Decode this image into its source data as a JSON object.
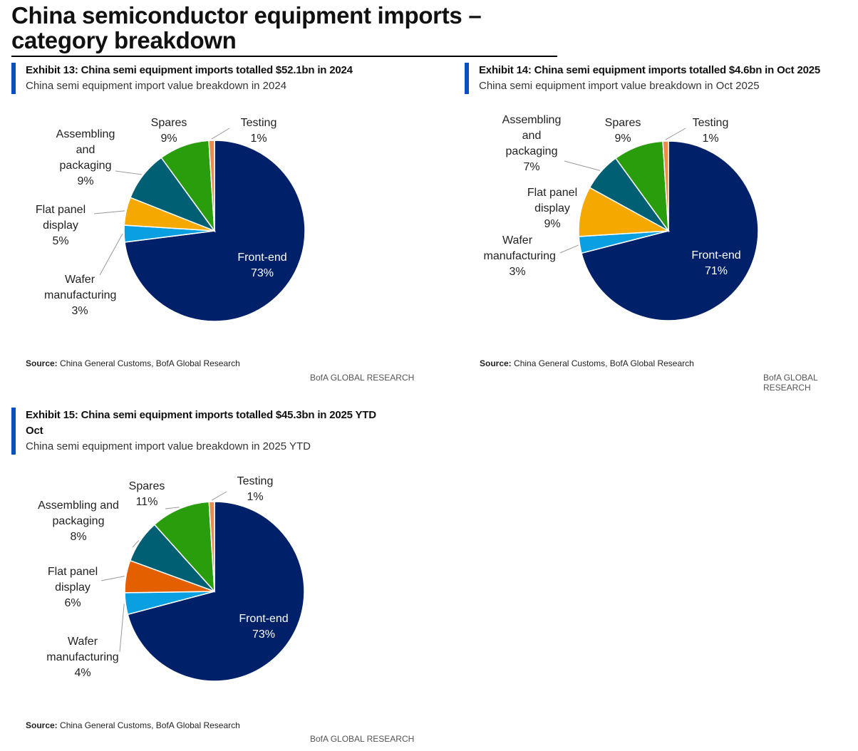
{
  "title": "China semiconductor equipment imports – category breakdown",
  "chart_data": [
    {
      "type": "pie",
      "title": "Exhibit 13: China semi equipment imports totalled $52.1bn in 2024",
      "subtitle": "China semi equipment import value breakdown in 2024",
      "categories": [
        "Front-end",
        "Wafer manufacturing",
        "Flat panel display",
        "Assembling and packaging",
        "Spares",
        "Testing"
      ],
      "values": [
        73,
        3,
        5,
        9,
        9,
        1
      ],
      "value_labels": [
        "73%",
        "3%",
        "5%",
        "9%",
        "9%",
        "1%"
      ],
      "colors": [
        "#002169",
        "#0a9fe0",
        "#f4a800",
        "#005f73",
        "#2a9d0c",
        "#f08a4b"
      ],
      "source_label": "Source:",
      "source": "China General Customs, BofA Global Research",
      "footer": "BofA GLOBAL RESEARCH"
    },
    {
      "type": "pie",
      "title": "Exhibit 14: China semi equipment imports totalled $4.6bn in Oct 2025",
      "subtitle": "China semi equipment import value breakdown in Oct 2025",
      "categories": [
        "Front-end",
        "Wafer manufacturing",
        "Flat panel display",
        "Assembling and packaging",
        "Spares",
        "Testing"
      ],
      "values": [
        71,
        3,
        9,
        7,
        9,
        1
      ],
      "value_labels": [
        "71%",
        "3%",
        "9%",
        "7%",
        "9%",
        "1%"
      ],
      "colors": [
        "#002169",
        "#0a9fe0",
        "#f4a800",
        "#005f73",
        "#2a9d0c",
        "#f08a4b"
      ],
      "source_label": "Source:",
      "source": "China General Customs, BofA Global Research",
      "footer": "BofA GLOBAL RESEARCH"
    },
    {
      "type": "pie",
      "title": "Exhibit 15: China semi equipment imports totalled $45.3bn in 2025 YTD Oct",
      "subtitle": "China semi equipment import value breakdown in 2025 YTD",
      "categories": [
        "Front-end",
        "Wafer manufacturing",
        "Flat panel display",
        "Assembling and packaging",
        "Spares",
        "Testing"
      ],
      "values": [
        73,
        4,
        6,
        8,
        11,
        1
      ],
      "value_labels": [
        "73%",
        "4%",
        "6%",
        "8%",
        "11%",
        "1%"
      ],
      "colors": [
        "#002169",
        "#0a9fe0",
        "#e35f00",
        "#005f73",
        "#2a9d0c",
        "#f08a4b"
      ],
      "source_label": "Source:",
      "source": "China General Customs, BofA Global Research",
      "footer": "BofA GLOBAL RESEARCH"
    }
  ]
}
